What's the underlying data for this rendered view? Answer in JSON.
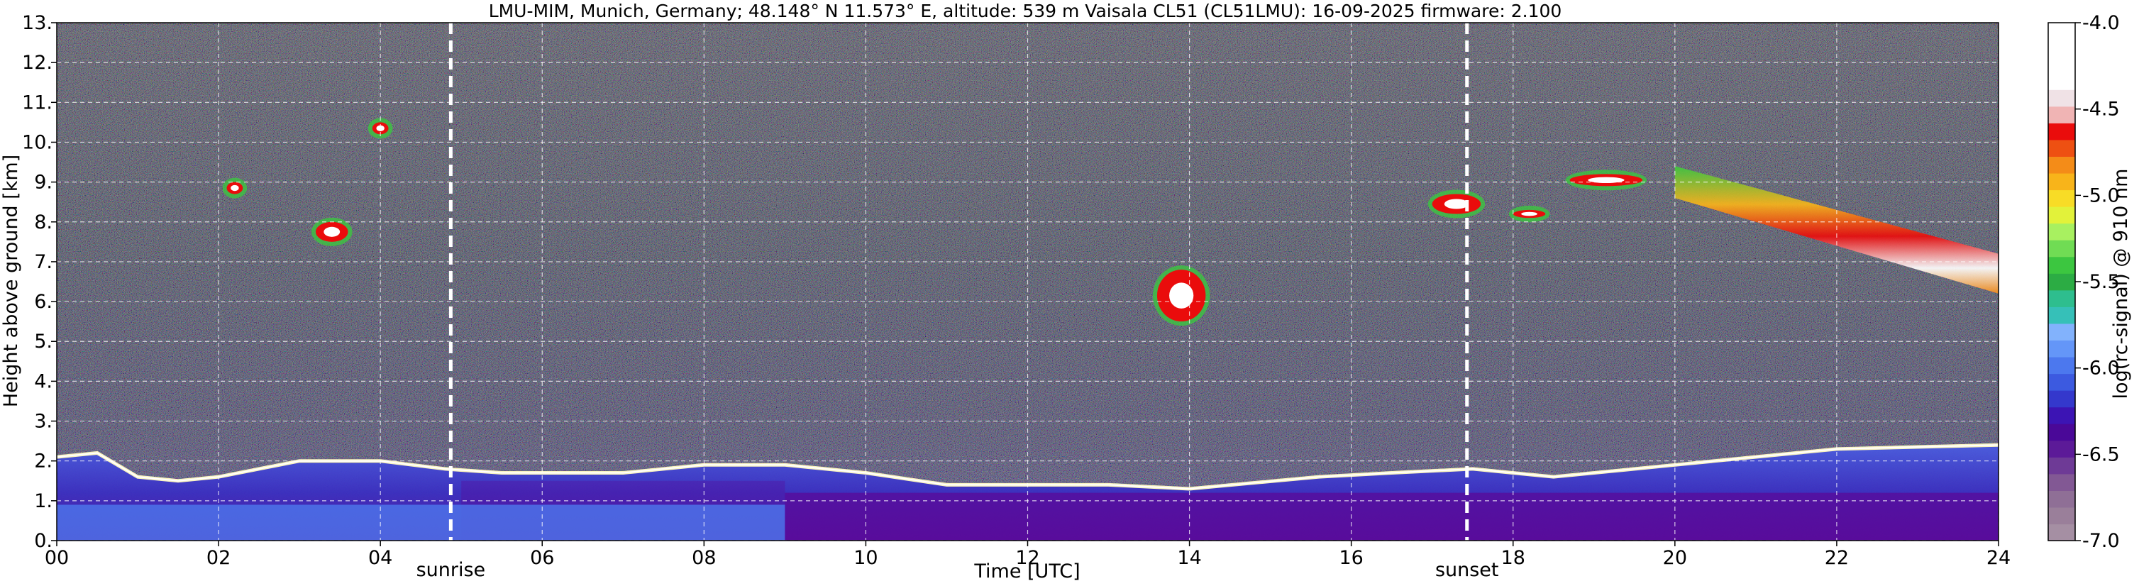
{
  "chart_data": {
    "type": "heatmap",
    "title": "LMU-MIM, Munich, Germany; 48.148° N 11.573° E, altitude: 539 m    Vaisala CL51 (CL51LMU): 16-09-2025    firmware: 2.100",
    "xlabel": "Time [UTC]",
    "ylabel": "Height above ground [km]",
    "xlim": [
      0,
      24
    ],
    "ylim": [
      0,
      13
    ],
    "x_ticks": [
      "00",
      "02",
      "04",
      "06",
      "08",
      "10",
      "12",
      "14",
      "16",
      "18",
      "20",
      "22",
      "24"
    ],
    "y_ticks": [
      "0.",
      "1.",
      "2.",
      "3.",
      "4.",
      "5.",
      "6.",
      "7.",
      "8.",
      "9.",
      "10.",
      "11.",
      "12.",
      "13."
    ],
    "grid": true,
    "colorbar": {
      "label": "log(rc-signal) @ 910 nm",
      "range": [
        -7.0,
        -4.0
      ],
      "ticks": [
        "-4.0",
        "-4.5",
        "-5.0",
        "-5.5",
        "-6.0",
        "-6.5",
        "-7.0"
      ],
      "colors": [
        "#a58fa3",
        "#9a7f9a",
        "#8f6f96",
        "#825894",
        "#6e3a96",
        "#5c1a98",
        "#4a0898",
        "#3c14b4",
        "#3438cc",
        "#3c5ae0",
        "#4c78ee",
        "#6496f8",
        "#82b2fc",
        "#36c0b8",
        "#2ebe8e",
        "#2cac44",
        "#3cc640",
        "#70dc54",
        "#a8f060",
        "#e2f23a",
        "#f8dc26",
        "#f8b41a",
        "#f48c18",
        "#ee5012",
        "#ea0c0c",
        "#f0b4b4",
        "#f0e2e6",
        "#ffffff",
        "#ffffff",
        "#ffffff",
        "#ffffff"
      ]
    },
    "annotations": [
      {
        "label": "sunrise",
        "time": 4.87
      },
      {
        "label": "sunset",
        "time": 17.43
      }
    ],
    "features": {
      "boundary_layer_top": [
        [
          0,
          2.1
        ],
        [
          0.5,
          2.2
        ],
        [
          1,
          1.6
        ],
        [
          1.5,
          1.5
        ],
        [
          2,
          1.6
        ],
        [
          3,
          2.0
        ],
        [
          4,
          2.0
        ],
        [
          4.8,
          1.8
        ],
        [
          5.5,
          1.7
        ],
        [
          7,
          1.7
        ],
        [
          8,
          1.9
        ],
        [
          9,
          1.9
        ],
        [
          10,
          1.7
        ],
        [
          11,
          1.4
        ],
        [
          13,
          1.4
        ],
        [
          14,
          1.3
        ],
        [
          15.6,
          1.6
        ],
        [
          16.5,
          1.7
        ],
        [
          17.5,
          1.8
        ],
        [
          18.5,
          1.6
        ],
        [
          20,
          1.9
        ],
        [
          22,
          2.3
        ],
        [
          24,
          2.4
        ]
      ],
      "aerosol_layer_segments": [
        [
          0,
          1.8,
          5.0
        ],
        [
          5.0,
          1.5,
          9.0
        ],
        [
          9.0,
          1.2,
          24.0
        ]
      ],
      "clouds": [
        {
          "t0": 3.9,
          "t1": 4.1,
          "h0": 10.2,
          "h1": 10.5
        },
        {
          "t0": 2.1,
          "t1": 2.3,
          "h0": 8.7,
          "h1": 9.0
        },
        {
          "t0": 3.2,
          "t1": 3.6,
          "h0": 7.5,
          "h1": 8.0
        },
        {
          "t0": 13.6,
          "t1": 14.2,
          "h0": 5.5,
          "h1": 6.8
        },
        {
          "t0": 17.0,
          "t1": 17.6,
          "h0": 8.2,
          "h1": 8.7
        },
        {
          "t0": 18.0,
          "t1": 18.4,
          "h0": 8.1,
          "h1": 8.3
        },
        {
          "t0": 18.7,
          "t1": 19.6,
          "h0": 8.9,
          "h1": 9.2
        }
      ],
      "cirrus_band": {
        "t0": 20.0,
        "t1": 24.0,
        "h_start": [
          8.6,
          9.4
        ],
        "h_end": [
          6.2,
          7.2
        ]
      }
    }
  }
}
